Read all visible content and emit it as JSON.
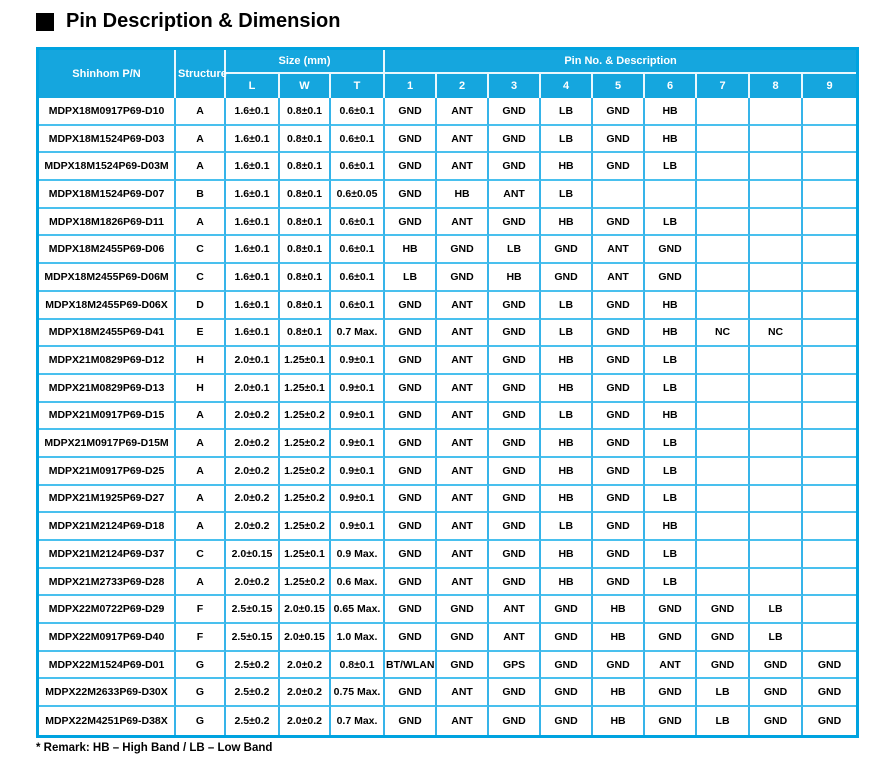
{
  "page": {
    "title": "Pin Description & Dimension",
    "remark": "* Remark: HB – High Band / LB – Low Band"
  },
  "colors": {
    "header_bg": "#15a6de",
    "grid_line": "#36b4e9",
    "outer_border": "#00a3e0",
    "header_divider": "#e9f7fd",
    "title_color": "#000000"
  },
  "table": {
    "header": {
      "pn": "Shinhom P/N",
      "structure": "Structure",
      "size_group": "Size (mm)",
      "size_cols": [
        "L",
        "W",
        "T"
      ],
      "pin_group": "Pin No. & Description",
      "pin_cols": [
        "1",
        "2",
        "3",
        "4",
        "5",
        "6",
        "7",
        "8",
        "9"
      ]
    },
    "rows": [
      {
        "pn": "MDPX18M0917P69-D10",
        "structure": "A",
        "size": [
          "1.6±0.1",
          "0.8±0.1",
          "0.6±0.1"
        ],
        "pins": [
          "GND",
          "ANT",
          "GND",
          "LB",
          "GND",
          "HB",
          "",
          "",
          ""
        ]
      },
      {
        "pn": "MDPX18M1524P69-D03",
        "structure": "A",
        "size": [
          "1.6±0.1",
          "0.8±0.1",
          "0.6±0.1"
        ],
        "pins": [
          "GND",
          "ANT",
          "GND",
          "LB",
          "GND",
          "HB",
          "",
          "",
          ""
        ]
      },
      {
        "pn": "MDPX18M1524P69-D03M",
        "structure": "A",
        "size": [
          "1.6±0.1",
          "0.8±0.1",
          "0.6±0.1"
        ],
        "pins": [
          "GND",
          "ANT",
          "GND",
          "HB",
          "GND",
          "LB",
          "",
          "",
          ""
        ]
      },
      {
        "pn": "MDPX18M1524P69-D07",
        "structure": "B",
        "size": [
          "1.6±0.1",
          "0.8±0.1",
          "0.6±0.05"
        ],
        "pins": [
          "GND",
          "HB",
          "ANT",
          "LB",
          "",
          "",
          "",
          "",
          ""
        ]
      },
      {
        "pn": "MDPX18M1826P69-D11",
        "structure": "A",
        "size": [
          "1.6±0.1",
          "0.8±0.1",
          "0.6±0.1"
        ],
        "pins": [
          "GND",
          "ANT",
          "GND",
          "HB",
          "GND",
          "LB",
          "",
          "",
          ""
        ]
      },
      {
        "pn": "MDPX18M2455P69-D06",
        "structure": "C",
        "size": [
          "1.6±0.1",
          "0.8±0.1",
          "0.6±0.1"
        ],
        "pins": [
          "HB",
          "GND",
          "LB",
          "GND",
          "ANT",
          "GND",
          "",
          "",
          ""
        ]
      },
      {
        "pn": "MDPX18M2455P69-D06M",
        "structure": "C",
        "size": [
          "1.6±0.1",
          "0.8±0.1",
          "0.6±0.1"
        ],
        "pins": [
          "LB",
          "GND",
          "HB",
          "GND",
          "ANT",
          "GND",
          "",
          "",
          ""
        ]
      },
      {
        "pn": "MDPX18M2455P69-D06X",
        "structure": "D",
        "size": [
          "1.6±0.1",
          "0.8±0.1",
          "0.6±0.1"
        ],
        "pins": [
          "GND",
          "ANT",
          "GND",
          "LB",
          "GND",
          "HB",
          "",
          "",
          ""
        ]
      },
      {
        "pn": "MDPX18M2455P69-D41",
        "structure": "E",
        "size": [
          "1.6±0.1",
          "0.8±0.1",
          "0.7 Max."
        ],
        "pins": [
          "GND",
          "ANT",
          "GND",
          "LB",
          "GND",
          "HB",
          "NC",
          "NC",
          ""
        ]
      },
      {
        "pn": "MDPX21M0829P69-D12",
        "structure": "H",
        "size": [
          "2.0±0.1",
          "1.25±0.1",
          "0.9±0.1"
        ],
        "pins": [
          "GND",
          "ANT",
          "GND",
          "HB",
          "GND",
          "LB",
          "",
          "",
          ""
        ]
      },
      {
        "pn": "MDPX21M0829P69-D13",
        "structure": "H",
        "size": [
          "2.0±0.1",
          "1.25±0.1",
          "0.9±0.1"
        ],
        "pins": [
          "GND",
          "ANT",
          "GND",
          "HB",
          "GND",
          "LB",
          "",
          "",
          ""
        ]
      },
      {
        "pn": "MDPX21M0917P69-D15",
        "structure": "A",
        "size": [
          "2.0±0.2",
          "1.25±0.2",
          "0.9±0.1"
        ],
        "pins": [
          "GND",
          "ANT",
          "GND",
          "LB",
          "GND",
          "HB",
          "",
          "",
          ""
        ]
      },
      {
        "pn": "MDPX21M0917P69-D15M",
        "structure": "A",
        "size": [
          "2.0±0.2",
          "1.25±0.2",
          "0.9±0.1"
        ],
        "pins": [
          "GND",
          "ANT",
          "GND",
          "HB",
          "GND",
          "LB",
          "",
          "",
          ""
        ]
      },
      {
        "pn": "MDPX21M0917P69-D25",
        "structure": "A",
        "size": [
          "2.0±0.2",
          "1.25±0.2",
          "0.9±0.1"
        ],
        "pins": [
          "GND",
          "ANT",
          "GND",
          "HB",
          "GND",
          "LB",
          "",
          "",
          ""
        ]
      },
      {
        "pn": "MDPX21M1925P69-D27",
        "structure": "A",
        "size": [
          "2.0±0.2",
          "1.25±0.2",
          "0.9±0.1"
        ],
        "pins": [
          "GND",
          "ANT",
          "GND",
          "HB",
          "GND",
          "LB",
          "",
          "",
          ""
        ]
      },
      {
        "pn": "MDPX21M2124P69-D18",
        "structure": "A",
        "size": [
          "2.0±0.2",
          "1.25±0.2",
          "0.9±0.1"
        ],
        "pins": [
          "GND",
          "ANT",
          "GND",
          "LB",
          "GND",
          "HB",
          "",
          "",
          ""
        ]
      },
      {
        "pn": "MDPX21M2124P69-D37",
        "structure": "C",
        "size": [
          "2.0±0.15",
          "1.25±0.1",
          "0.9 Max."
        ],
        "pins": [
          "GND",
          "ANT",
          "GND",
          "HB",
          "GND",
          "LB",
          "",
          "",
          ""
        ]
      },
      {
        "pn": "MDPX21M2733P69-D28",
        "structure": "A",
        "size": [
          "2.0±0.2",
          "1.25±0.2",
          "0.6 Max."
        ],
        "pins": [
          "GND",
          "ANT",
          "GND",
          "HB",
          "GND",
          "LB",
          "",
          "",
          ""
        ]
      },
      {
        "pn": "MDPX22M0722P69-D29",
        "structure": "F",
        "size": [
          "2.5±0.15",
          "2.0±0.15",
          "0.65 Max."
        ],
        "pins": [
          "GND",
          "GND",
          "ANT",
          "GND",
          "HB",
          "GND",
          "GND",
          "LB",
          ""
        ]
      },
      {
        "pn": "MDPX22M0917P69-D40",
        "structure": "F",
        "size": [
          "2.5±0.15",
          "2.0±0.15",
          "1.0 Max."
        ],
        "pins": [
          "GND",
          "GND",
          "ANT",
          "GND",
          "HB",
          "GND",
          "GND",
          "LB",
          ""
        ]
      },
      {
        "pn": "MDPX22M1524P69-D01",
        "structure": "G",
        "size": [
          "2.5±0.2",
          "2.0±0.2",
          "0.8±0.1"
        ],
        "pins": [
          "BT/WLAN",
          "GND",
          "GPS",
          "GND",
          "GND",
          "ANT",
          "GND",
          "GND",
          "GND"
        ]
      },
      {
        "pn": "MDPX22M2633P69-D30X",
        "structure": "G",
        "size": [
          "2.5±0.2",
          "2.0±0.2",
          "0.75 Max."
        ],
        "pins": [
          "GND",
          "ANT",
          "GND",
          "GND",
          "HB",
          "GND",
          "LB",
          "GND",
          "GND"
        ]
      },
      {
        "pn": "MDPX22M4251P69-D38X",
        "structure": "G",
        "size": [
          "2.5±0.2",
          "2.0±0.2",
          "0.7 Max."
        ],
        "pins": [
          "GND",
          "ANT",
          "GND",
          "GND",
          "HB",
          "GND",
          "LB",
          "GND",
          "GND"
        ]
      }
    ]
  }
}
